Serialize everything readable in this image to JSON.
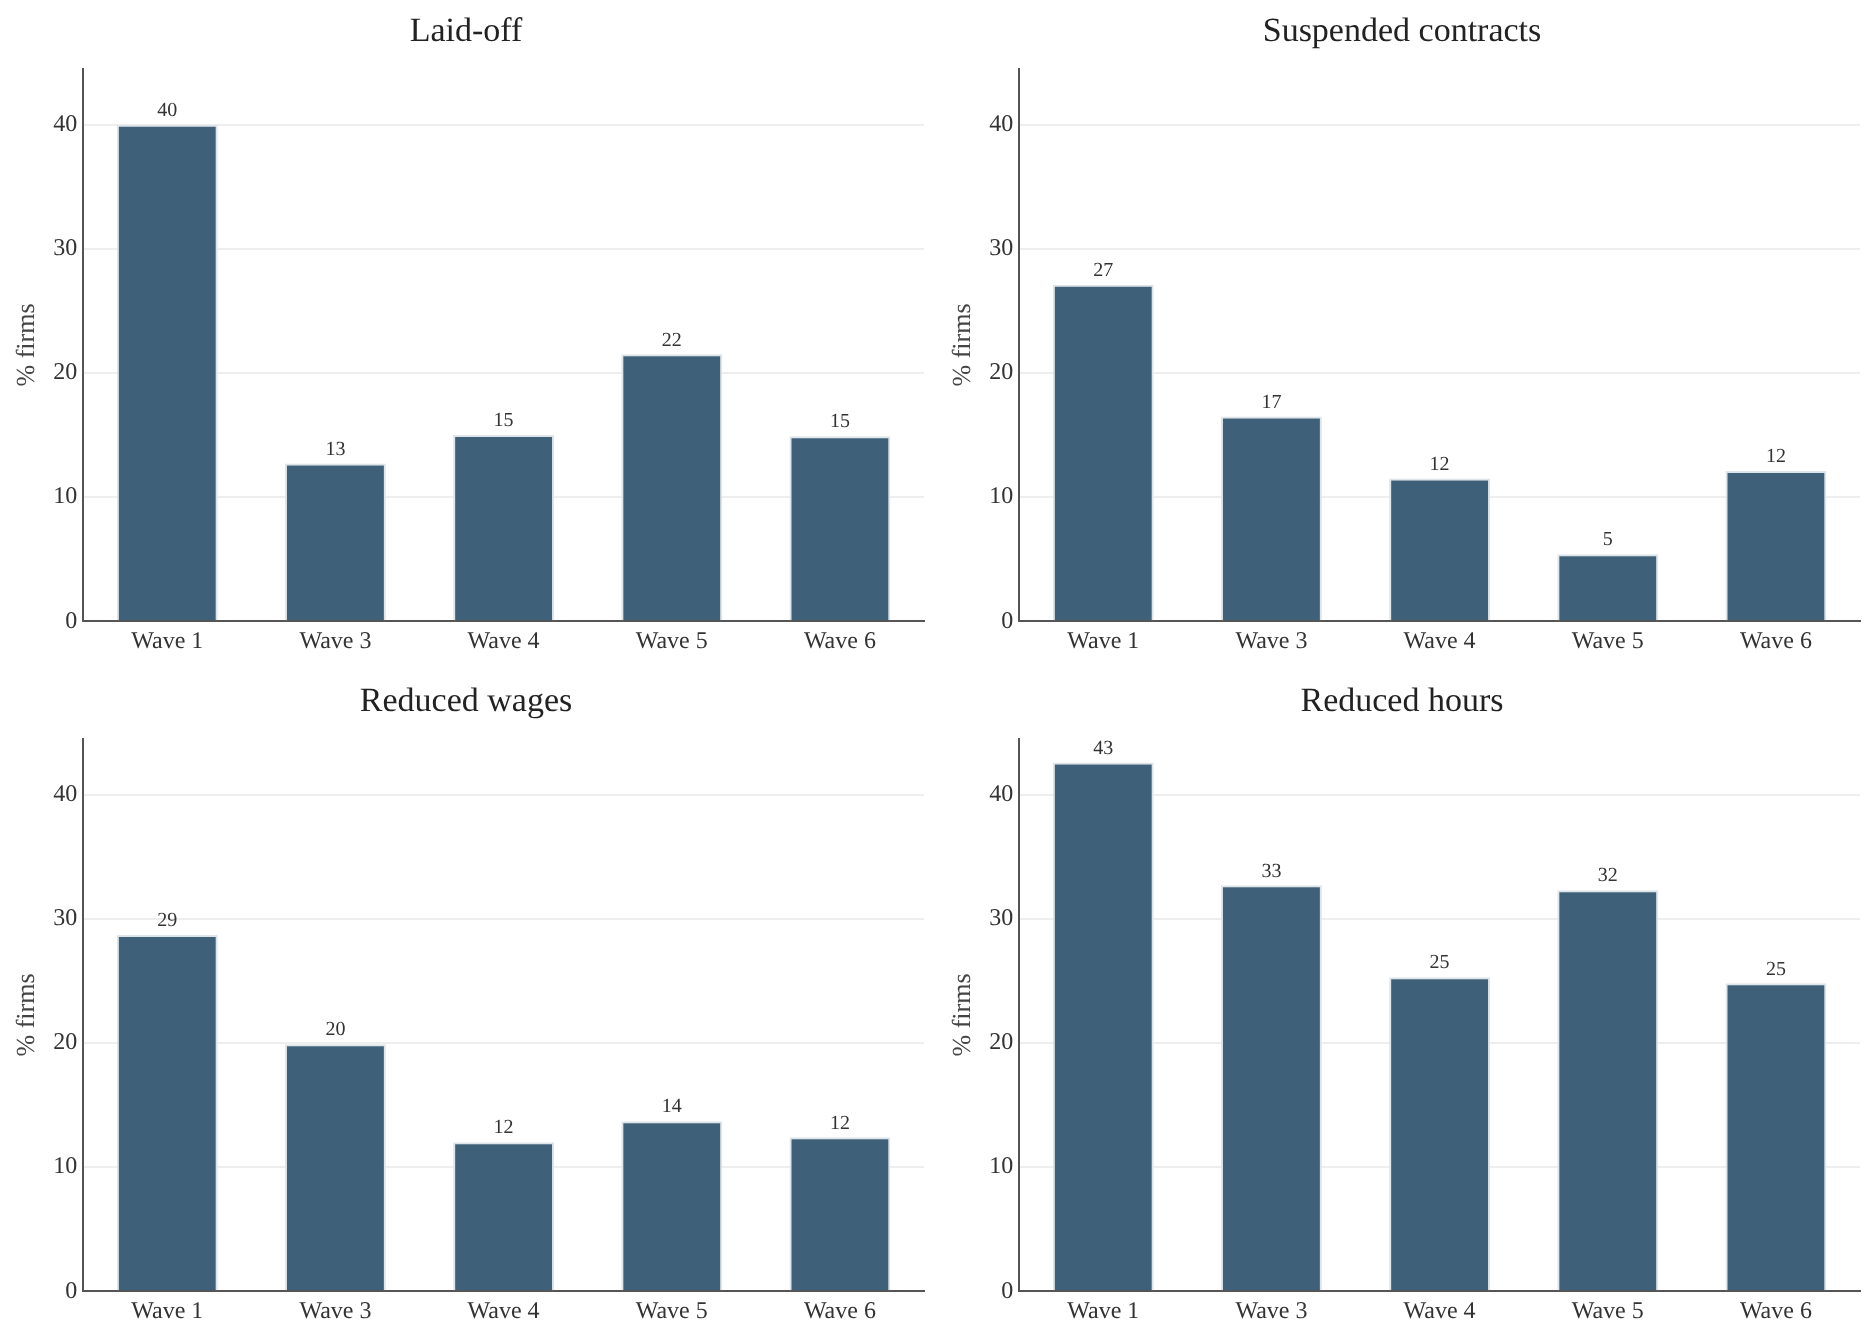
{
  "chart_data": [
    {
      "type": "bar",
      "title": "Laid-off",
      "ylabel": "% firms",
      "categories": [
        "Wave 1",
        "Wave 3",
        "Wave 4",
        "Wave 5",
        "Wave 6"
      ],
      "values": [
        40.0,
        12.7,
        15.0,
        21.5,
        14.9
      ],
      "value_labels": [
        "40",
        "13",
        "15",
        "22",
        "15"
      ],
      "color": "#3e6079",
      "ylim": [
        0,
        44.5
      ],
      "yticks": [
        0,
        10,
        20,
        30,
        40
      ],
      "grid": "y"
    },
    {
      "type": "bar",
      "title": "Suspended contracts",
      "ylabel": "% firms",
      "categories": [
        "Wave 1",
        "Wave 3",
        "Wave 4",
        "Wave 5",
        "Wave 6"
      ],
      "values": [
        27.1,
        16.5,
        11.5,
        5.4,
        12.1
      ],
      "value_labels": [
        "27",
        "17",
        "12",
        "5",
        "12"
      ],
      "color": "#3e6079",
      "ylim": [
        0,
        44.5
      ],
      "yticks": [
        0,
        10,
        20,
        30,
        40
      ],
      "grid": "y"
    },
    {
      "type": "bar",
      "title": "Reduced wages",
      "ylabel": "% firms",
      "categories": [
        "Wave 1",
        "Wave 3",
        "Wave 4",
        "Wave 5",
        "Wave 6"
      ],
      "values": [
        28.7,
        19.9,
        12.0,
        13.7,
        12.4
      ],
      "value_labels": [
        "29",
        "20",
        "12",
        "14",
        "12"
      ],
      "color": "#3e6079",
      "ylim": [
        0,
        44.5
      ],
      "yticks": [
        0,
        10,
        20,
        30,
        40
      ],
      "grid": "y"
    },
    {
      "type": "bar",
      "title": "Reduced hours",
      "ylabel": "% firms",
      "categories": [
        "Wave 1",
        "Wave 3",
        "Wave 4",
        "Wave 5",
        "Wave 6"
      ],
      "values": [
        42.6,
        32.7,
        25.3,
        32.3,
        24.8
      ],
      "value_labels": [
        "43",
        "33",
        "25",
        "32",
        "25"
      ],
      "color": "#3e6079",
      "ylim": [
        0,
        44.5
      ],
      "yticks": [
        0,
        10,
        20,
        30,
        40
      ],
      "grid": "y"
    }
  ]
}
